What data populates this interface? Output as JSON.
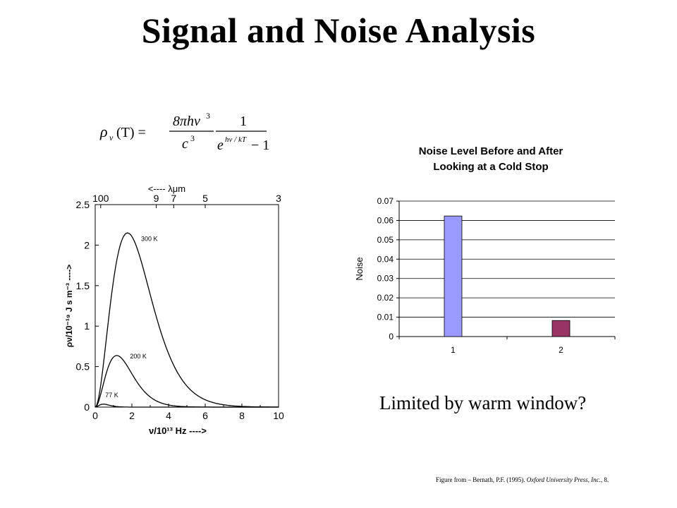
{
  "slide": {
    "title": "Signal and Noise Analysis",
    "caption": "Limited by warm window?",
    "source_prefix": "Figure from – Bernath, P.F. (1995). ",
    "source_italic": "Oxford University Press, Inc.",
    "source_suffix": ", 8."
  },
  "formula": {
    "lhs": "ρ",
    "lhs_sub": "ν",
    "lhs_arg": "(T) =",
    "num1": "8πhν",
    "num1_sup": "3",
    "den1": "c",
    "den1_sup": "3",
    "num2": "1",
    "den2": "e",
    "den2_sup": "hν / kT",
    "den2_tail": "− 1"
  },
  "chart_data": [
    {
      "type": "line",
      "title": "",
      "xlabel": "ν/10¹³ Hz ---->",
      "ylabel": "ρν/10⁻¹⁹ J s m⁻³ ---->",
      "top_axis_label": "<---- λμm",
      "xlim": [
        0,
        10
      ],
      "ylim": [
        0,
        2.5
      ],
      "x_ticks": [
        "0",
        "2",
        "4",
        "6",
        "8",
        "10"
      ],
      "y_ticks": [
        "0",
        "0.5",
        "1",
        "1.5",
        "2",
        "2.5"
      ],
      "top_ticks": [
        {
          "label": "100",
          "x": 0.3
        },
        {
          "label": "9",
          "x": 3.33
        },
        {
          "label": "7",
          "x": 4.28
        },
        {
          "label": "5",
          "x": 6.0
        },
        {
          "label": "3",
          "x": 10.0
        }
      ],
      "grid": false,
      "series": [
        {
          "name": "300 K",
          "T": 300
        },
        {
          "name": "200 K",
          "T": 200
        },
        {
          "name": "77 K",
          "T": 77
        }
      ]
    },
    {
      "type": "bar",
      "title": "Noise Level Before and After Looking at a Cold Stop",
      "xlabel": "",
      "ylabel": "Noise",
      "categories": [
        "1",
        "2"
      ],
      "values": [
        0.0623,
        0.0083
      ],
      "colors": [
        "#9999ff",
        "#993366"
      ],
      "ylim": [
        0,
        0.07
      ],
      "y_ticks": [
        "0",
        "0.01",
        "0.02",
        "0.03",
        "0.04",
        "0.05",
        "0.06",
        "0.07"
      ],
      "grid": true
    }
  ]
}
